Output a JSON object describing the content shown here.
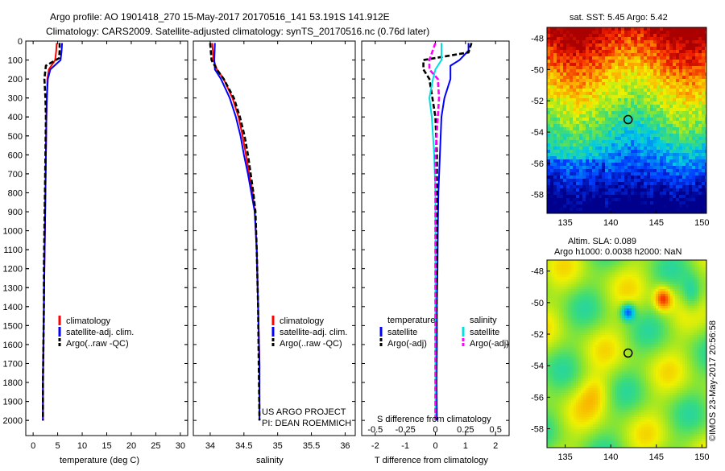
{
  "header": {
    "title_line1": "Argo profile: AO 1901418_270 15-May-2017 20170516_141 53.191S 141.912E",
    "title_line2": "Climatology: CARS2009. Satellite-adjusted climatology: synTS_20170516.nc (0.76d later)"
  },
  "colors": {
    "climatology": "#ff0000",
    "satellite": "#0000ff",
    "argo": "#000000",
    "sal_satellite": "#00e0e0",
    "sal_argo": "#ff00ff"
  },
  "chart_data": [
    {
      "type": "line",
      "id": "temperature",
      "xlabel": "temperature (deg C)",
      "ylabel": "",
      "xlim": [
        -1.5,
        31.5
      ],
      "ylim": [
        2080,
        0
      ],
      "xticks": [
        "0",
        "5",
        "10",
        "15",
        "20",
        "25",
        "30"
      ],
      "xtick_values": [
        0,
        5,
        10,
        15,
        20,
        25,
        30
      ],
      "yticks": [
        "0",
        "100",
        "200",
        "300",
        "400",
        "500",
        "600",
        "700",
        "800",
        "900",
        "1000",
        "1100",
        "1200",
        "1300",
        "1400",
        "1500",
        "1600",
        "1700",
        "1800",
        "1900",
        "2000"
      ],
      "series": [
        {
          "name": "climatology",
          "style": "solid",
          "color_key": "climatology",
          "x": [
            4.8,
            4.7,
            4.5,
            3.2,
            2.9,
            2.8,
            2.7,
            2.6,
            2.5,
            2.4,
            2.3,
            2.2,
            2.1,
            2.0,
            2.0
          ],
          "y": [
            10,
            50,
            100,
            150,
            200,
            300,
            400,
            600,
            800,
            1000,
            1200,
            1400,
            1600,
            1800,
            2000
          ]
        },
        {
          "name": "satellite-adj. clim.",
          "style": "solid",
          "color_key": "satellite",
          "x": [
            5.9,
            5.8,
            5.6,
            3.5,
            3.0,
            2.8,
            2.7,
            2.6,
            2.5,
            2.4,
            2.3,
            2.2,
            2.1,
            2.0,
            2.0
          ],
          "y": [
            10,
            50,
            100,
            150,
            200,
            300,
            400,
            600,
            800,
            1000,
            1200,
            1400,
            1600,
            1800,
            2000
          ]
        },
        {
          "name": "Argo(..raw -QC)",
          "style": "dashed",
          "color_key": "argo",
          "x": [
            5.4,
            5.4,
            5.3,
            2.6,
            2.3,
            2.5,
            2.6,
            2.5,
            2.4,
            2.3,
            2.2,
            2.2,
            2.1,
            2.0,
            2.0
          ],
          "y": [
            10,
            50,
            90,
            130,
            200,
            300,
            400,
            600,
            800,
            1000,
            1200,
            1400,
            1600,
            1800,
            2000
          ]
        }
      ]
    },
    {
      "type": "line",
      "id": "salinity",
      "xlabel": "salinity",
      "xlim": [
        33.75,
        36.15
      ],
      "ylim": [
        2080,
        0
      ],
      "xticks": [
        "34",
        "34.5",
        "35",
        "35.5",
        "36"
      ],
      "xtick_values": [
        34,
        34.5,
        35,
        35.5,
        36
      ],
      "series": [
        {
          "name": "climatology",
          "style": "solid",
          "color_key": "climatology",
          "x": [
            34.03,
            34.05,
            34.1,
            34.2,
            34.33,
            34.42,
            34.48,
            34.53,
            34.58,
            34.63,
            34.66,
            34.69,
            34.71,
            34.73,
            34.73
          ],
          "y": [
            10,
            100,
            150,
            200,
            300,
            400,
            500,
            600,
            700,
            800,
            900,
            1100,
            1400,
            1700,
            2000
          ]
        },
        {
          "name": "satellite-adj. clim.",
          "style": "solid",
          "color_key": "satellite",
          "x": [
            34.07,
            34.06,
            34.07,
            34.16,
            34.29,
            34.38,
            34.45,
            34.5,
            34.56,
            34.61,
            34.66,
            34.69,
            34.71,
            34.73,
            34.73
          ],
          "y": [
            10,
            100,
            150,
            200,
            300,
            400,
            500,
            600,
            700,
            800,
            900,
            1100,
            1400,
            1700,
            2000
          ]
        },
        {
          "name": "Argo(..raw -QC)",
          "style": "dashed",
          "color_key": "argo",
          "x": [
            34.0,
            34.02,
            34.1,
            34.2,
            34.35,
            34.44,
            34.51,
            34.56,
            34.6,
            34.64,
            34.67,
            34.69,
            34.71,
            34.72,
            34.73
          ],
          "y": [
            10,
            100,
            150,
            200,
            300,
            400,
            500,
            600,
            700,
            800,
            900,
            1100,
            1400,
            1700,
            2000
          ]
        }
      ]
    },
    {
      "type": "line",
      "id": "difference",
      "xlabel": "T difference from climatology",
      "xlabel_top": "S difference from climatology",
      "xlim": [
        -2.45,
        2.45
      ],
      "ylim": [
        2080,
        0
      ],
      "xticks": [
        "-2",
        "-1",
        "0",
        "1",
        "2"
      ],
      "xtick_values": [
        -2,
        -1,
        0,
        1,
        2
      ],
      "xticks_sal": [
        "-0.5",
        "-0.25",
        "0",
        "0.25",
        "0.5"
      ],
      "xtick_values_sal": [
        -0.5,
        -0.25,
        0,
        0.25,
        0.5
      ],
      "series": [
        {
          "name": "temperature satellite",
          "style": "solid",
          "color_key": "satellite",
          "x": [
            1.1,
            1.1,
            0.8,
            0.5,
            0.5,
            0.3,
            0.2,
            0.15,
            0.1,
            0.08,
            0.07,
            0.05,
            0.05,
            0.04,
            0.05
          ],
          "y": [
            10,
            50,
            100,
            130,
            200,
            300,
            400,
            600,
            800,
            1000,
            1200,
            1400,
            1600,
            1800,
            2000
          ]
        },
        {
          "name": "temperature Argo(-adj)",
          "style": "dashed",
          "color_key": "argo",
          "x": [
            1.2,
            1.1,
            -0.4,
            -0.4,
            -0.2,
            -0.1,
            0.0,
            0.05,
            0.05,
            0.05,
            0.04,
            0.04,
            0.03,
            0.03,
            0.02
          ],
          "y": [
            10,
            60,
            100,
            150,
            200,
            300,
            400,
            600,
            800,
            1000,
            1200,
            1400,
            1600,
            1800,
            2000
          ]
        },
        {
          "name": "salinity satellite",
          "style": "solid",
          "color_key": "sal_satellite",
          "x": [
            0.05,
            0.05,
            0.0,
            -0.02,
            -0.05,
            -0.03,
            -0.02,
            -0.01,
            0.0,
            0.0,
            0.0,
            0.0,
            0.0,
            0.0,
            0.0
          ],
          "y": [
            10,
            100,
            150,
            200,
            300,
            400,
            500,
            600,
            800,
            1000,
            1200,
            1400,
            1600,
            1800,
            2000
          ]
        },
        {
          "name": "salinity Argo(-adj)",
          "style": "dashed",
          "color_key": "sal_argo",
          "x": [
            0.0,
            -0.05,
            -0.05,
            0.02,
            0.03,
            0.02,
            0.01,
            0.0,
            0.0,
            0.0,
            0.0,
            0.0,
            0.0,
            0.0,
            0.0
          ],
          "y": [
            10,
            100,
            150,
            200,
            300,
            400,
            500,
            600,
            800,
            1000,
            1200,
            1400,
            1600,
            1800,
            2000
          ]
        }
      ]
    },
    {
      "type": "heatmap",
      "id": "sst_map",
      "title": "sat. SST: 5.45 Argo: 5.42",
      "xlim": [
        133,
        150.5
      ],
      "ylim": [
        -59.2,
        -47.3
      ],
      "xticks": [
        "135",
        "140",
        "145",
        "150"
      ],
      "yticks": [
        "-48",
        "-50",
        "-52",
        "-54",
        "-56",
        "-58"
      ],
      "marker": {
        "lon": 141.9,
        "lat": -53.2
      }
    },
    {
      "type": "heatmap",
      "id": "sla_map",
      "title_line1": "Altim. SLA: 0.089",
      "title_line2": "Argo h1000: 0.0038 h2000: NaN",
      "xlim": [
        133,
        150.5
      ],
      "ylim": [
        -59.2,
        -47.3
      ],
      "xticks": [
        "135",
        "140",
        "145",
        "150"
      ],
      "yticks": [
        "-48",
        "-50",
        "-52",
        "-54",
        "-56",
        "-58"
      ],
      "marker": {
        "lon": 141.9,
        "lat": -53.2
      }
    }
  ],
  "legends": {
    "temperature": [
      "climatology",
      "satellite-adj. clim.",
      "Argo(..raw -QC)"
    ],
    "salinity": [
      "climatology",
      "satellite-adj. clim.",
      "Argo(..raw -QC)"
    ],
    "difference": {
      "temp_header": "temperature",
      "sal_header": "salinity",
      "temp_items": [
        "satellite",
        "Argo(-adj)"
      ],
      "sal_items": [
        "satellite",
        "Argo(-adj)"
      ]
    }
  },
  "credits": {
    "line1": "US ARGO PROJECT",
    "line2": "PI: DEAN ROEMMICH",
    "vertical": "©IMOS 23-May-2017 20:56:58"
  }
}
